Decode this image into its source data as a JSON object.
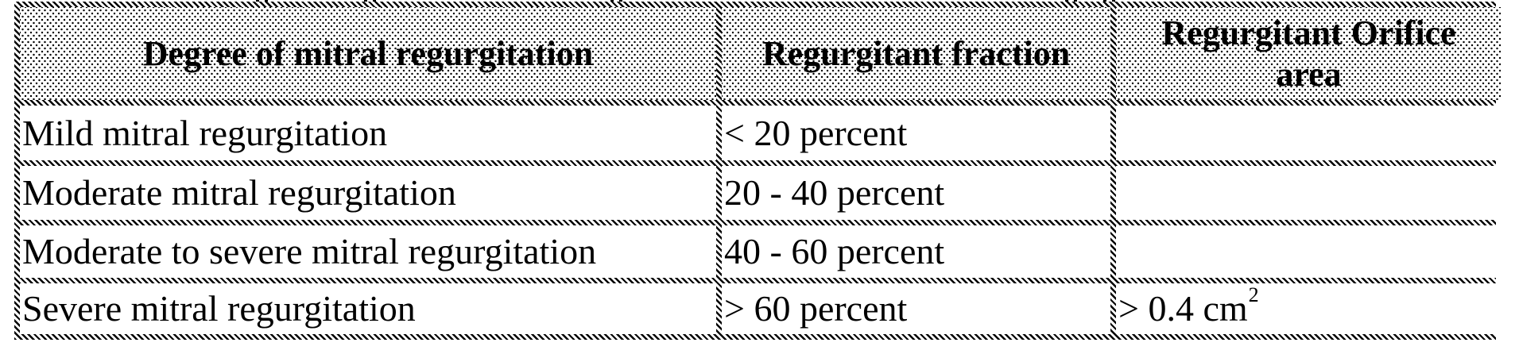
{
  "table": {
    "headers": [
      "Degree of mitral regurgitation",
      "Regurgitant fraction",
      "Regurgitant Orifice area"
    ],
    "rows": [
      {
        "degree": "Mild mitral regurgitation",
        "fraction": "< 20 percent",
        "orifice": "",
        "orifice_sup": ""
      },
      {
        "degree": "Moderate mitral regurgitation",
        "fraction": "20 - 40 percent",
        "orifice": "",
        "orifice_sup": ""
      },
      {
        "degree": "Moderate to severe mitral regurgitation",
        "fraction": "40 - 60 percent",
        "orifice": "",
        "orifice_sup": ""
      },
      {
        "degree": "Severe mitral regurgitation",
        "fraction": "> 60 percent",
        "orifice": "> 0.4 cm",
        "orifice_sup": "2"
      }
    ]
  },
  "colors": {
    "text": "#000000",
    "border_hatch": "#000000",
    "header_dots": "#000000",
    "background": "#ffffff"
  }
}
